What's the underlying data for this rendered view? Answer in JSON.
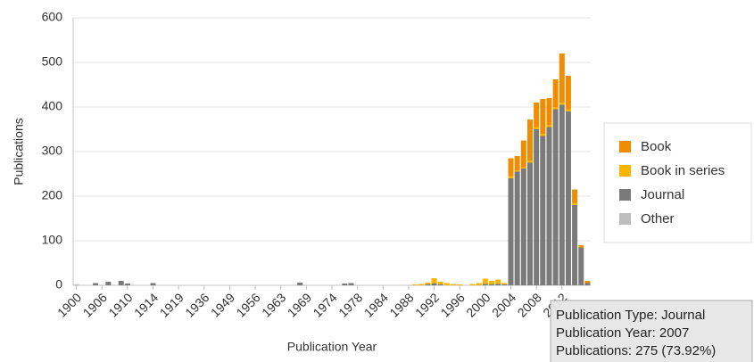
{
  "chart_data": {
    "type": "bar",
    "stacked": true,
    "x_label": "Publication Year",
    "y_label": "Publications",
    "categories": [
      "1900",
      null,
      null,
      null,
      "1906",
      null,
      null,
      null,
      "1910",
      null,
      null,
      null,
      "1914",
      null,
      null,
      null,
      "1919",
      null,
      null,
      null,
      "1936",
      null,
      null,
      null,
      "1949",
      null,
      null,
      null,
      "1956",
      null,
      null,
      null,
      "1963",
      null,
      null,
      null,
      "1969",
      null,
      null,
      null,
      "1974",
      null,
      null,
      null,
      "1978",
      null,
      null,
      null,
      "1984",
      null,
      null,
      null,
      "1988",
      null,
      null,
      null,
      "1992",
      null,
      null,
      null,
      "1996",
      null,
      null,
      null,
      "2000",
      null,
      null,
      null,
      "2004",
      null,
      null,
      null,
      "2008",
      null,
      null,
      null,
      "2012",
      null,
      null,
      null,
      null
    ],
    "series": [
      {
        "name": "Book",
        "color": "#f08c00",
        "values": [
          0,
          0,
          0,
          0,
          0,
          0,
          0,
          0,
          0,
          0,
          0,
          0,
          0,
          0,
          0,
          0,
          0,
          0,
          0,
          0,
          0,
          0,
          0,
          0,
          0,
          0,
          0,
          0,
          0,
          0,
          0,
          0,
          0,
          0,
          0,
          0,
          0,
          0,
          0,
          0,
          0,
          0,
          0,
          0,
          0,
          0,
          0,
          0,
          0,
          0,
          0,
          0,
          0,
          0,
          0,
          0,
          0,
          0,
          0,
          0,
          0,
          0,
          0,
          0,
          0,
          0,
          0,
          0,
          40,
          32,
          60,
          92,
          55,
          78,
          60,
          62,
          110,
          75,
          30,
          3,
          5
        ]
      },
      {
        "name": "Book in series",
        "color": "#fbb400",
        "values": [
          0,
          0,
          0,
          0,
          0,
          0,
          0,
          0,
          0,
          0,
          0,
          0,
          0,
          0,
          0,
          0,
          0,
          0,
          0,
          0,
          0,
          0,
          0,
          0,
          0,
          0,
          0,
          0,
          0,
          0,
          0,
          0,
          0,
          0,
          0,
          0,
          0,
          0,
          0,
          0,
          0,
          0,
          0,
          0,
          0,
          0,
          0,
          0,
          0,
          0,
          0,
          0,
          0,
          2,
          3,
          4,
          12,
          6,
          5,
          3,
          2,
          0,
          3,
          5,
          12,
          8,
          10,
          3,
          5,
          3,
          3,
          5,
          5,
          5,
          5,
          5,
          5,
          5,
          5,
          2,
          0
        ]
      },
      {
        "name": "Journal",
        "color": "#7a7a7a",
        "values": [
          1,
          0,
          0,
          5,
          0,
          8,
          0,
          10,
          4,
          0,
          0,
          0,
          5,
          0,
          0,
          0,
          0,
          0,
          0,
          0,
          0,
          0,
          0,
          0,
          0,
          0,
          0,
          0,
          0,
          0,
          0,
          0,
          0,
          0,
          0,
          6,
          0,
          0,
          0,
          0,
          0,
          0,
          4,
          5,
          0,
          0,
          0,
          0,
          0,
          0,
          0,
          0,
          0,
          0,
          0,
          2,
          4,
          2,
          0,
          0,
          0,
          0,
          0,
          0,
          3,
          2,
          3,
          2,
          240,
          255,
          262,
          275,
          350,
          335,
          355,
          395,
          405,
          390,
          180,
          85,
          5
        ]
      },
      {
        "name": "Other",
        "color": "#bdbdbd",
        "values": [
          0,
          0,
          0,
          0,
          0,
          0,
          0,
          0,
          0,
          0,
          0,
          0,
          0,
          0,
          0,
          0,
          0,
          0,
          0,
          0,
          0,
          0,
          0,
          0,
          0,
          0,
          0,
          0,
          0,
          0,
          0,
          0,
          0,
          0,
          0,
          0,
          0,
          0,
          0,
          0,
          0,
          0,
          0,
          0,
          0,
          0,
          0,
          0,
          0,
          0,
          0,
          0,
          0,
          0,
          0,
          0,
          0,
          0,
          0,
          0,
          0,
          0,
          0,
          0,
          0,
          0,
          0,
          0,
          0,
          0,
          0,
          0,
          0,
          0,
          0,
          0,
          0,
          0,
          0,
          0,
          0
        ]
      }
    ],
    "ylim": [
      0,
      600
    ],
    "yticks": [
      0,
      100,
      200,
      300,
      400,
      500,
      600
    ],
    "grid": true,
    "legend": "right",
    "tooltip": [
      "Publication Type: Journal",
      "Publication Year: 2007",
      "Publications: 275 (73.92%)"
    ]
  }
}
